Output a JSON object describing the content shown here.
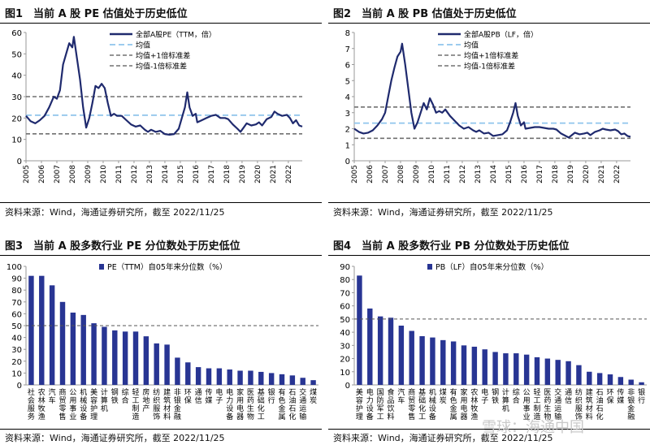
{
  "source_text": "资料来源：Wind，海通证券研究所，截至 2022/11/25",
  "watermark": "雪球：海通中国",
  "colors": {
    "line": "#1f2a6e",
    "mean": "#8fc4ec",
    "band": "#707070",
    "bar": "#283593"
  },
  "chart_data": [
    {
      "id": "fig1",
      "type": "line",
      "title": "图1　当前 A 股 PE 估值处于历史低位",
      "ylim": [
        0,
        60
      ],
      "yticks": [
        0,
        10,
        20,
        30,
        40,
        50,
        60
      ],
      "xticks": [
        "2005",
        "2006",
        "2007",
        "2008",
        "2009",
        "2010",
        "2011",
        "2012",
        "2013",
        "2014",
        "2015",
        "2016",
        "2017",
        "2018",
        "2019",
        "2020",
        "2021",
        "2022"
      ],
      "x_start": 2005.0,
      "x_end": 2022.9,
      "legend": [
        "全部A股PE（TTM，倍）",
        "均值",
        "均值+1倍标准差",
        "均值-1倍标准差"
      ],
      "mean": 21.3,
      "upper": 30.0,
      "lower": 12.6,
      "series": [
        [
          2005.0,
          21
        ],
        [
          2005.3,
          18.5
        ],
        [
          2005.6,
          17.5
        ],
        [
          2005.9,
          19
        ],
        [
          2006.2,
          21
        ],
        [
          2006.5,
          25
        ],
        [
          2006.8,
          30
        ],
        [
          2007.0,
          29
        ],
        [
          2007.2,
          33
        ],
        [
          2007.4,
          45
        ],
        [
          2007.6,
          50
        ],
        [
          2007.8,
          55
        ],
        [
          2008.0,
          53
        ],
        [
          2008.1,
          58
        ],
        [
          2008.3,
          48
        ],
        [
          2008.5,
          38
        ],
        [
          2008.7,
          25
        ],
        [
          2008.9,
          15.5
        ],
        [
          2009.1,
          20
        ],
        [
          2009.3,
          27
        ],
        [
          2009.5,
          35
        ],
        [
          2009.7,
          34
        ],
        [
          2009.9,
          36
        ],
        [
          2010.1,
          34
        ],
        [
          2010.3,
          27
        ],
        [
          2010.5,
          21
        ],
        [
          2010.7,
          22
        ],
        [
          2010.9,
          21
        ],
        [
          2011.2,
          21
        ],
        [
          2011.5,
          19
        ],
        [
          2011.8,
          17
        ],
        [
          2012.1,
          16
        ],
        [
          2012.4,
          16.5
        ],
        [
          2012.7,
          14.5
        ],
        [
          2012.9,
          13.5
        ],
        [
          2013.1,
          14.5
        ],
        [
          2013.4,
          13.5
        ],
        [
          2013.7,
          14
        ],
        [
          2014.0,
          12.5
        ],
        [
          2014.3,
          12.2
        ],
        [
          2014.6,
          12.5
        ],
        [
          2014.9,
          15
        ],
        [
          2015.1,
          20
        ],
        [
          2015.3,
          25
        ],
        [
          2015.45,
          32
        ],
        [
          2015.6,
          25
        ],
        [
          2015.8,
          21
        ],
        [
          2016.0,
          22
        ],
        [
          2016.1,
          18
        ],
        [
          2016.4,
          19
        ],
        [
          2016.7,
          20
        ],
        [
          2017.0,
          21
        ],
        [
          2017.3,
          21.5
        ],
        [
          2017.6,
          20
        ],
        [
          2017.9,
          20
        ],
        [
          2018.1,
          19.5
        ],
        [
          2018.4,
          17
        ],
        [
          2018.7,
          15
        ],
        [
          2018.9,
          13.5
        ],
        [
          2019.1,
          15.5
        ],
        [
          2019.3,
          17.5
        ],
        [
          2019.6,
          16.5
        ],
        [
          2019.9,
          17
        ],
        [
          2020.1,
          18
        ],
        [
          2020.3,
          16.5
        ],
        [
          2020.6,
          19.5
        ],
        [
          2020.9,
          20.5
        ],
        [
          2021.1,
          23
        ],
        [
          2021.3,
          22
        ],
        [
          2021.6,
          21
        ],
        [
          2021.9,
          21.5
        ],
        [
          2022.1,
          20
        ],
        [
          2022.3,
          17.5
        ],
        [
          2022.5,
          19
        ],
        [
          2022.7,
          16.5
        ],
        [
          2022.9,
          16
        ]
      ]
    },
    {
      "id": "fig2",
      "type": "line",
      "title": "图2　当前 A 股 PB 估值处于历史低位",
      "ylim": [
        0,
        8
      ],
      "yticks": [
        0,
        1,
        2,
        3,
        4,
        5,
        6,
        7,
        8
      ],
      "xticks": [
        "2005",
        "2006",
        "2007",
        "2008",
        "2009",
        "2010",
        "2011",
        "2012",
        "2013",
        "2014",
        "2015",
        "2016",
        "2017",
        "2018",
        "2019",
        "2020",
        "2021",
        "2022"
      ],
      "x_start": 2005.0,
      "x_end": 2022.9,
      "legend": [
        "全部A股PB（LF，倍）",
        "均值",
        "均值+1倍标准差",
        "均值-1倍标准差"
      ],
      "mean": 2.35,
      "upper": 3.35,
      "lower": 1.4,
      "series": [
        [
          2005.0,
          2.0
        ],
        [
          2005.3,
          1.8
        ],
        [
          2005.6,
          1.7
        ],
        [
          2005.9,
          1.75
        ],
        [
          2006.2,
          1.9
        ],
        [
          2006.5,
          2.2
        ],
        [
          2006.8,
          2.6
        ],
        [
          2007.0,
          3.0
        ],
        [
          2007.2,
          4.0
        ],
        [
          2007.4,
          5.0
        ],
        [
          2007.6,
          5.8
        ],
        [
          2007.8,
          6.5
        ],
        [
          2008.0,
          6.8
        ],
        [
          2008.1,
          7.3
        ],
        [
          2008.3,
          6.0
        ],
        [
          2008.5,
          4.5
        ],
        [
          2008.7,
          3.0
        ],
        [
          2008.9,
          2.0
        ],
        [
          2009.1,
          2.4
        ],
        [
          2009.3,
          3.0
        ],
        [
          2009.5,
          3.6
        ],
        [
          2009.7,
          3.2
        ],
        [
          2009.9,
          3.9
        ],
        [
          2010.1,
          3.5
        ],
        [
          2010.3,
          3.0
        ],
        [
          2010.5,
          3.1
        ],
        [
          2010.7,
          3.0
        ],
        [
          2010.9,
          3.2
        ],
        [
          2011.2,
          2.8
        ],
        [
          2011.5,
          2.5
        ],
        [
          2011.8,
          2.2
        ],
        [
          2012.1,
          2.0
        ],
        [
          2012.4,
          2.1
        ],
        [
          2012.7,
          1.9
        ],
        [
          2012.9,
          1.8
        ],
        [
          2013.1,
          1.9
        ],
        [
          2013.4,
          1.7
        ],
        [
          2013.7,
          1.75
        ],
        [
          2014.0,
          1.55
        ],
        [
          2014.3,
          1.6
        ],
        [
          2014.6,
          1.65
        ],
        [
          2014.9,
          1.9
        ],
        [
          2015.1,
          2.4
        ],
        [
          2015.3,
          3.0
        ],
        [
          2015.45,
          3.6
        ],
        [
          2015.6,
          2.8
        ],
        [
          2015.8,
          2.2
        ],
        [
          2016.0,
          2.4
        ],
        [
          2016.1,
          2.0
        ],
        [
          2016.4,
          2.05
        ],
        [
          2016.7,
          2.1
        ],
        [
          2017.0,
          2.1
        ],
        [
          2017.3,
          2.05
        ],
        [
          2017.6,
          2.0
        ],
        [
          2017.9,
          2.0
        ],
        [
          2018.1,
          1.95
        ],
        [
          2018.4,
          1.7
        ],
        [
          2018.7,
          1.55
        ],
        [
          2018.9,
          1.45
        ],
        [
          2019.1,
          1.6
        ],
        [
          2019.3,
          1.75
        ],
        [
          2019.6,
          1.65
        ],
        [
          2019.9,
          1.7
        ],
        [
          2020.1,
          1.75
        ],
        [
          2020.3,
          1.6
        ],
        [
          2020.6,
          1.8
        ],
        [
          2020.9,
          1.9
        ],
        [
          2021.1,
          2.0
        ],
        [
          2021.3,
          1.95
        ],
        [
          2021.6,
          1.9
        ],
        [
          2021.9,
          1.95
        ],
        [
          2022.1,
          1.85
        ],
        [
          2022.3,
          1.65
        ],
        [
          2022.5,
          1.7
        ],
        [
          2022.7,
          1.55
        ],
        [
          2022.9,
          1.5
        ]
      ]
    },
    {
      "id": "fig3",
      "type": "bar",
      "title": "图3　当前 A 股多数行业 PE 分位数处于历史低位",
      "legend": "PE（TTM）自05年来分位数（%）",
      "ylim": [
        0,
        100
      ],
      "yticks": [
        0,
        10,
        20,
        30,
        40,
        50,
        60,
        70,
        80,
        90,
        100
      ],
      "reference_line": 50,
      "categories": [
        "社会服务",
        "农林牧渔",
        "汽车",
        "商贸零售",
        "公用事业",
        "机械设备",
        "美容护理",
        "计算机",
        "钢铁",
        "综合",
        "轻工制造",
        "房地产",
        "纺织服饰",
        "建筑材料",
        "非银金融",
        "环保",
        "通信",
        "传媒",
        "电子",
        "电力设备",
        "家用电器",
        "医药生物",
        "基础化工",
        "银行",
        "有色金属",
        "石油石化",
        "交通运输",
        "煤炭"
      ],
      "values": [
        92,
        92,
        84,
        70,
        61,
        59,
        52,
        49,
        46,
        45,
        45,
        41,
        35,
        34,
        23,
        19,
        15,
        14,
        14,
        13,
        12,
        12,
        11,
        10,
        9,
        8,
        6,
        4
      ]
    },
    {
      "id": "fig4",
      "type": "bar",
      "title": "图4　当前 A 股多数行业 PB 分位数处于历史低位",
      "legend": "PB（LF）自05年来分位数（%）",
      "ylim": [
        0,
        90
      ],
      "yticks": [
        0,
        10,
        20,
        30,
        40,
        50,
        60,
        70,
        80,
        90
      ],
      "reference_line": 50,
      "categories": [
        "美容护理",
        "电力设备",
        "国防军工",
        "食品饮料",
        "汽车",
        "商贸零售",
        "基础化工",
        "机械设备",
        "煤炭",
        "有色金属",
        "家用电器",
        "农林牧渔",
        "电子",
        "钢铁",
        "计算机",
        "综合",
        "公用事业",
        "轻工制造",
        "医药生物",
        "交通运输",
        "通信",
        "纺织服饰",
        "建筑材料",
        "石油石化",
        "环保",
        "传媒",
        "非银金融",
        "银行"
      ],
      "values": [
        83,
        58,
        52,
        51,
        45,
        41,
        37,
        36,
        34,
        33,
        30,
        29,
        27,
        25,
        24,
        24,
        23,
        21,
        20,
        19,
        18,
        15,
        10,
        9,
        8,
        6,
        4,
        2
      ]
    }
  ]
}
